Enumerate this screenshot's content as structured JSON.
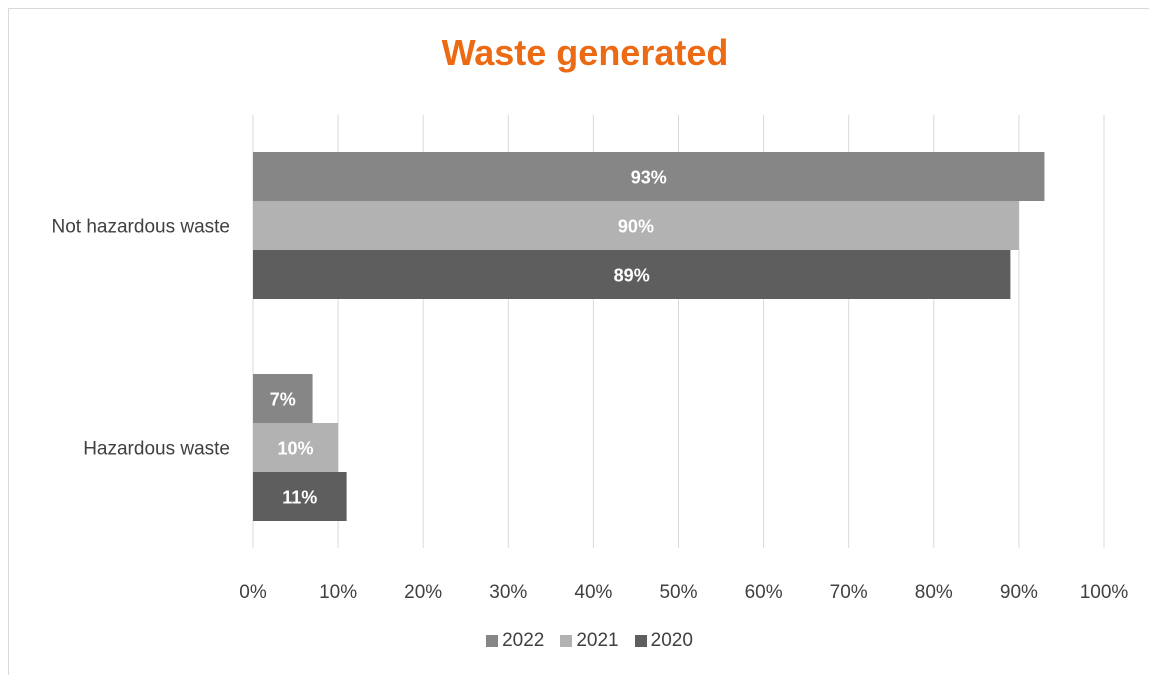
{
  "chart_data": {
    "type": "bar",
    "orientation": "horizontal",
    "title": "Waste generated",
    "categories": [
      "Not hazardous waste",
      "Hazardous waste"
    ],
    "series": [
      {
        "name": "2022",
        "values": [
          93,
          7
        ],
        "labels": [
          "93%",
          "7%"
        ],
        "color": "#868686"
      },
      {
        "name": "2021",
        "values": [
          90,
          10
        ],
        "labels": [
          "90%",
          "10%"
        ],
        "color": "#b2b2b2"
      },
      {
        "name": "2020",
        "values": [
          89,
          11
        ],
        "labels": [
          "89%",
          "11%"
        ],
        "color": "#5e5e5e"
      }
    ],
    "xlim": [
      0,
      100
    ],
    "x_ticks": [
      "0%",
      "10%",
      "20%",
      "30%",
      "40%",
      "50%",
      "60%",
      "70%",
      "80%",
      "90%",
      "100%"
    ],
    "grid": true,
    "legend_position": "bottom",
    "data_label_color": "#ffffff"
  }
}
